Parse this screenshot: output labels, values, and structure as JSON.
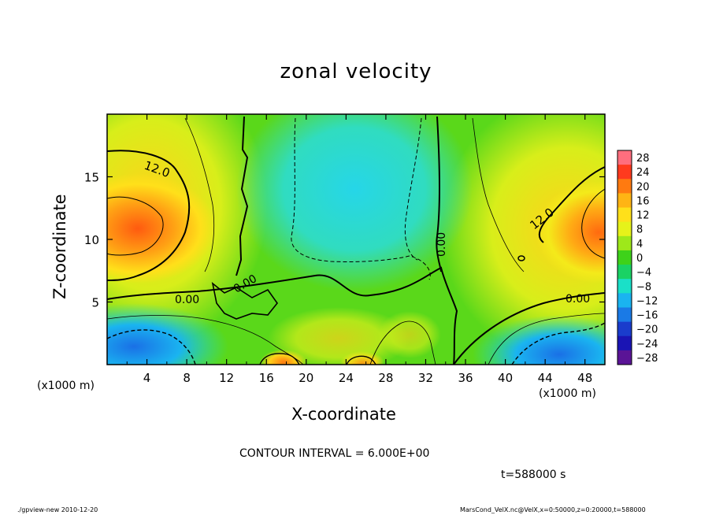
{
  "chart_data": {
    "type": "heatmap",
    "title": "zonal velocity",
    "xlabel": "X-coordinate",
    "ylabel": "Z-coordinate",
    "x_unit_left": "(x1000 m)",
    "x_unit_right": "(x1000 m)",
    "x_ticks": [
      "4",
      "8",
      "12",
      "16",
      "20",
      "24",
      "28",
      "32",
      "36",
      "40",
      "44",
      "48"
    ],
    "y_ticks": [
      "5",
      "10",
      "15"
    ],
    "xlim": [
      0,
      50
    ],
    "ylim": [
      0,
      20
    ],
    "colorbar_labels": [
      "28",
      "24",
      "20",
      "16",
      "12",
      "8",
      "4",
      "0",
      "−4",
      "−8",
      "−12",
      "−16",
      "−20",
      "−24",
      "−28"
    ],
    "colorbar_colors": [
      "#ff6e7e",
      "#ff3a1e",
      "#ff7a10",
      "#ffb414",
      "#ffe01a",
      "#e6f21a",
      "#9ee81a",
      "#3ed21a",
      "#1ad264",
      "#1ae0c8",
      "#1ab4f0",
      "#1a7ae6",
      "#1a3ccc",
      "#1a14b4",
      "#5a1496"
    ],
    "contour_labels": [
      "12.0",
      "12.0",
      "0.00",
      "0.00",
      "0.00",
      "0.00"
    ],
    "contour_interval_text": "CONTOUR INTERVAL = 6.000E+00",
    "time_text": "t=588000 s"
  },
  "footer": {
    "left": "./gpview-new  2010-12-20",
    "right": "MarsCond_VelX.nc@VelX,x=0:50000,z=0:20000,t=588000"
  }
}
